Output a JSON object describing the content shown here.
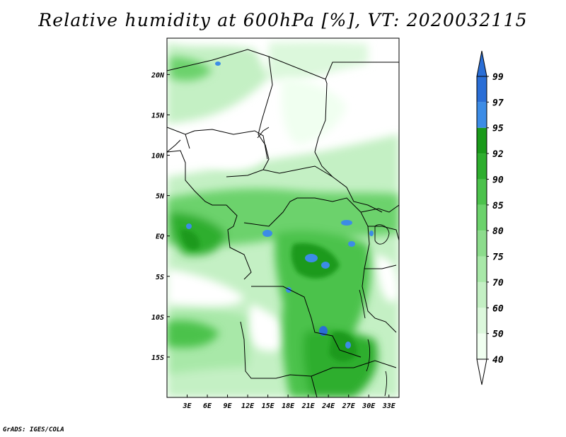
{
  "title": "Relative humidity at 600hPa [%], VT: 2020032115",
  "footer": "GrADS: IGES/COLA",
  "map": {
    "lon_range": [
      0,
      34.5
    ],
    "lat_range": [
      -20,
      24.5
    ],
    "x_ticks": [
      {
        "value": 3,
        "label": "3E"
      },
      {
        "value": 6,
        "label": "6E"
      },
      {
        "value": 9,
        "label": "9E"
      },
      {
        "value": 12,
        "label": "12E"
      },
      {
        "value": 15,
        "label": "15E"
      },
      {
        "value": 18,
        "label": "18E"
      },
      {
        "value": 21,
        "label": "21E"
      },
      {
        "value": 24,
        "label": "24E"
      },
      {
        "value": 27,
        "label": "27E"
      },
      {
        "value": 30,
        "label": "30E"
      },
      {
        "value": 33,
        "label": "33E"
      }
    ],
    "y_ticks": [
      {
        "value": 20,
        "label": "20N"
      },
      {
        "value": 15,
        "label": "15N"
      },
      {
        "value": 10,
        "label": "10N"
      },
      {
        "value": 5,
        "label": "5N"
      },
      {
        "value": 0,
        "label": "EQ"
      },
      {
        "value": -5,
        "label": "5S"
      },
      {
        "value": -10,
        "label": "10S"
      },
      {
        "value": -15,
        "label": "15S"
      }
    ]
  },
  "colorbar": {
    "levels": [
      {
        "label": "40",
        "color": "#f0fff0"
      },
      {
        "label": "50",
        "color": "#dcf8dc"
      },
      {
        "label": "60",
        "color": "#c4f0c4"
      },
      {
        "label": "70",
        "color": "#a8e8a8"
      },
      {
        "label": "75",
        "color": "#8cdc8c"
      },
      {
        "label": "80",
        "color": "#6cd26c"
      },
      {
        "label": "85",
        "color": "#4cc24c"
      },
      {
        "label": "90",
        "color": "#2eae2e"
      },
      {
        "label": "92",
        "color": "#1a9a1a"
      },
      {
        "label": "95",
        "color": "#3c8ce6"
      },
      {
        "label": "97",
        "color": "#2a6ed6"
      },
      {
        "label": "99",
        "color": ""
      }
    ],
    "top_color": "#2a6ed6",
    "bottom_color": "#ffffff"
  }
}
